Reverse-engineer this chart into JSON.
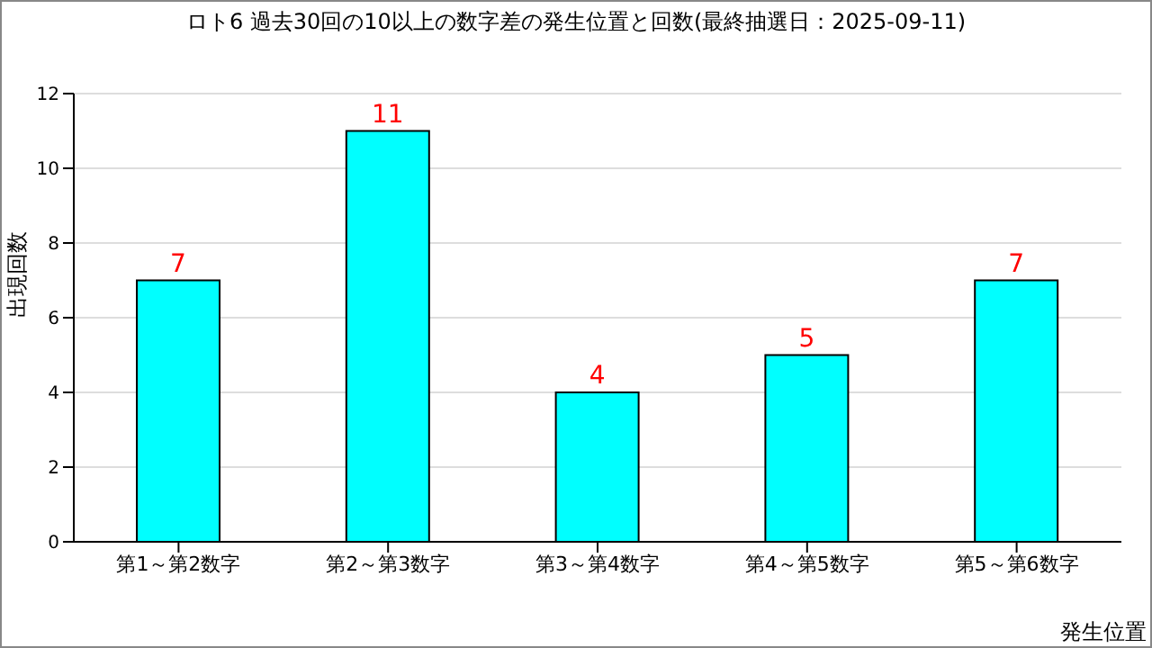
{
  "chart_data": {
    "type": "bar",
    "title": "ロト6 過去30回の10以上の数字差の発生位置と回数(最終抽選日：2025-09-11)",
    "xlabel": "発生位置",
    "ylabel": "出現回数",
    "categories": [
      "第1～第2数字",
      "第2～第3数字",
      "第3～第4数字",
      "第4～第5数字",
      "第5～第6数字"
    ],
    "values": [
      7,
      11,
      4,
      5,
      7
    ],
    "color": "#00ffff",
    "ylim": [
      0,
      12
    ],
    "yticks": [
      0,
      2,
      4,
      6,
      8,
      10,
      12
    ],
    "grid": "y",
    "data_labels": true
  }
}
